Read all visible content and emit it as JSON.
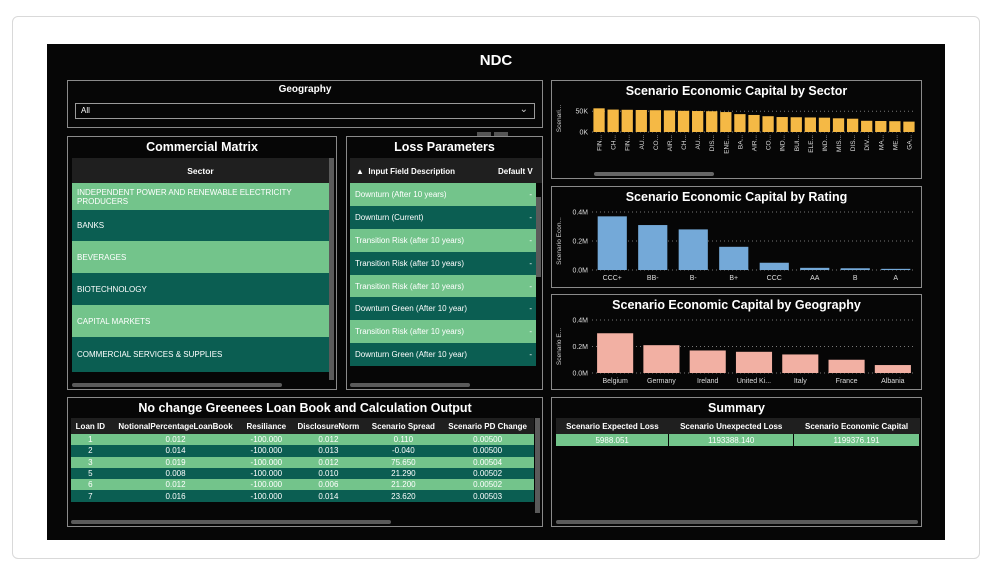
{
  "dashboard": {
    "title": "NDC"
  },
  "geography": {
    "title": "Geography",
    "selected": "All"
  },
  "commercial_matrix": {
    "title": "Commercial Matrix",
    "column": "Sector",
    "rows": [
      "INDEPENDENT POWER AND RENEWABLE ELECTRICITY PRODUCERS",
      "BANKS",
      "BEVERAGES",
      "BIOTECHNOLOGY",
      "CAPITAL MARKETS",
      "COMMERCIAL SERVICES & SUPPLIES"
    ]
  },
  "loss_parameters": {
    "title": "Loss Parameters",
    "col1": "Input Field Description",
    "col2": "Default V",
    "rows": [
      "Downturn (After 10 years)",
      "Downturn (Current)",
      "Transition Risk (after 10 years)",
      "Transition Risk (after 10 years)",
      "Transition Risk (after 10 years)",
      "Downturn Green (After 10 year)",
      "Transition Risk (after 10 years)",
      "Downturn Green (After 10 year)"
    ],
    "value_placeholder": "-"
  },
  "loan_book": {
    "title": "No change Greenees Loan Book and Calculation Output",
    "headers": [
      "Loan ID",
      "NotionalPercentageLoanBook",
      "Resiliance",
      "DisclosureNorm",
      "Scenario Spread",
      "Scenario PD Change"
    ],
    "rows": [
      [
        "1",
        "0.012",
        "-100.000",
        "0.012",
        "0.110",
        "0.00500"
      ],
      [
        "2",
        "0.014",
        "-100.000",
        "0.013",
        "-0.040",
        "0.00500"
      ],
      [
        "3",
        "0.019",
        "-100.000",
        "0.012",
        "75.650",
        "0.00504"
      ],
      [
        "5",
        "0.008",
        "-100.000",
        "0.010",
        "21.290",
        "0.00502"
      ],
      [
        "6",
        "0.012",
        "-100.000",
        "0.006",
        "21.200",
        "0.00502"
      ],
      [
        "7",
        "0.016",
        "-100.000",
        "0.014",
        "23.620",
        "0.00503"
      ]
    ]
  },
  "summary": {
    "title": "Summary",
    "headers": [
      "Scenario Expected Loss",
      "Scenario Unexpected Loss",
      "Scenario Economic Capital"
    ],
    "values": [
      "5988.051",
      "1193388.140",
      "1199376.191"
    ]
  },
  "colors": {
    "sector_bar": "#f5b945",
    "rating_bar": "#74a9d8",
    "geo_bar": "#f2b0a3",
    "green_light": "#73c48b",
    "green_dark": "#0b5e52"
  },
  "chart_data": [
    {
      "type": "bar",
      "title": "Scenario Economic Capital by Sector",
      "ylabel": "Scenari...",
      "yticks": [
        "50K",
        "0K"
      ],
      "ylim": [
        0,
        65000
      ],
      "categories": [
        "FIN...",
        "CH...",
        "FIN...",
        "AU...",
        "CO...",
        "AIR...",
        "CH...",
        "AU...",
        "DIS...",
        "ENE...",
        "BA...",
        "AIR...",
        "CO...",
        "IND...",
        "BUI...",
        "ELE...",
        "IND...",
        "MIS...",
        "DIS...",
        "DIV...",
        "MA...",
        "ME...",
        "GA..."
      ],
      "values": [
        57000,
        54000,
        53500,
        53000,
        52500,
        52000,
        51000,
        50500,
        50000,
        48000,
        43000,
        41000,
        38000,
        36000,
        35500,
        35000,
        34500,
        33000,
        32000,
        27000,
        26500,
        26000,
        25000
      ],
      "grid": true
    },
    {
      "type": "bar",
      "title": "Scenario Economic Capital by Rating",
      "ylabel": "Scenario Econ...",
      "yticks": [
        "0.4M",
        "0.2M",
        "0.0M"
      ],
      "ylim": [
        0,
        0.4
      ],
      "categories": [
        "CCC+",
        "BB-",
        "B-",
        "B+",
        "CCC",
        "AA",
        "B",
        "A"
      ],
      "values": [
        0.37,
        0.31,
        0.28,
        0.16,
        0.05,
        0.015,
        0.012,
        0.008
      ],
      "grid": true
    },
    {
      "type": "bar",
      "title": "Scenario Economic Capital by Geography",
      "ylabel": "Scenario E...",
      "yticks": [
        "0.4M",
        "0.2M",
        "0.0M"
      ],
      "ylim": [
        0,
        0.4
      ],
      "categories": [
        "Belgium",
        "Germany",
        "Ireland",
        "United Ki...",
        "Italy",
        "France",
        "Albania"
      ],
      "values": [
        0.3,
        0.21,
        0.17,
        0.16,
        0.14,
        0.1,
        0.06
      ],
      "grid": true
    }
  ]
}
